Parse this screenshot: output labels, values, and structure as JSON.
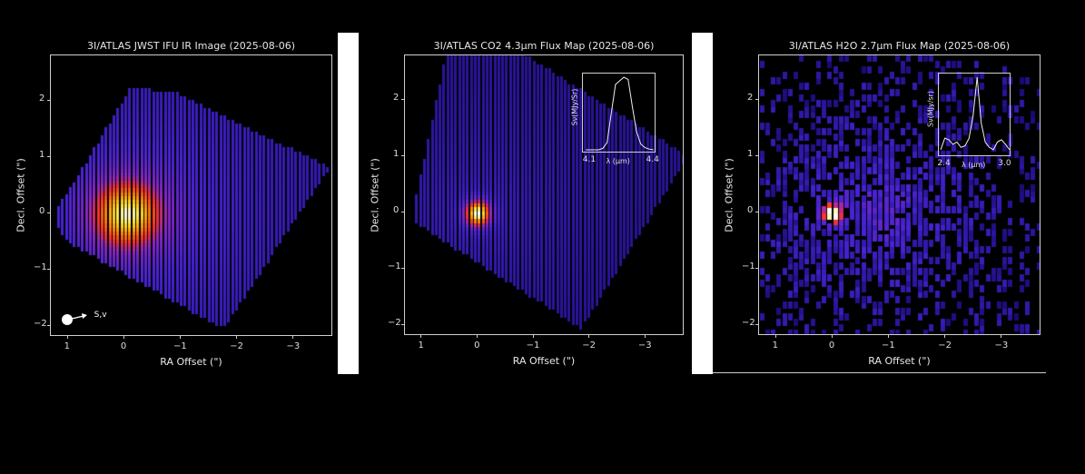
{
  "chart_data": [
    {
      "type": "heatmap",
      "title": "3I/ATLAS JWST IFU IR Image (2025-08-06)",
      "xlabel": "RA Offset (\")",
      "ylabel": "Decl. Offset (\")",
      "xticks": [
        1,
        0,
        -1,
        -2,
        -3
      ],
      "yticks": [
        -2,
        -1,
        0,
        1,
        2
      ],
      "xlim": [
        1.3,
        -3.7
      ],
      "ylim": [
        -2.2,
        2.8
      ],
      "peak": {
        "x": 0,
        "y": 0
      },
      "colormap": "gnuplot2",
      "annotation": {
        "text": "S,v",
        "marker": "white-dot-arrow"
      }
    },
    {
      "type": "heatmap",
      "title": "3I/ATLAS CO2 4.3µm Flux Map (2025-08-06)",
      "xlabel": "RA Offset (\")",
      "ylabel": "Decl. Offset (\")",
      "xticks": [
        1,
        0,
        -1,
        -2,
        -3
      ],
      "yticks": [
        -2,
        -1,
        0,
        1,
        2
      ],
      "xlim": [
        1.3,
        -3.7
      ],
      "ylim": [
        -2.2,
        2.8
      ],
      "peak": {
        "x": 0,
        "y": 0
      },
      "colormap": "gnuplot2",
      "inset": {
        "type": "line",
        "xlabel": "λ (µm)",
        "ylabel": "Sν(MJy/Sr)",
        "xticks": [
          4.1,
          4.4
        ],
        "x": [
          4.08,
          4.1,
          4.12,
          4.14,
          4.16,
          4.18,
          4.2,
          4.22,
          4.24,
          4.26,
          4.28,
          4.3,
          4.32,
          4.34,
          4.36,
          4.38,
          4.4
        ],
        "y": [
          0,
          0,
          0,
          0,
          0.02,
          0.1,
          0.5,
          0.9,
          0.95,
          1.0,
          0.97,
          0.6,
          0.25,
          0.08,
          0.03,
          0.01,
          0
        ]
      }
    },
    {
      "type": "heatmap",
      "title": "3I/ATLAS H2O 2.7µm Flux Map (2025-08-06)",
      "xlabel": "RA Offset (\")",
      "ylabel": "Decl. Offset (\")",
      "xticks": [
        1,
        0,
        -1,
        -2,
        -3
      ],
      "yticks": [
        -2,
        -1,
        0,
        1,
        2
      ],
      "xlim": [
        1.3,
        -3.7
      ],
      "ylim": [
        -2.2,
        2.8
      ],
      "peak": {
        "x": 0,
        "y": 0
      },
      "colormap": "gnuplot2",
      "inset": {
        "type": "line",
        "xlabel": "λ (µm)",
        "ylabel": "Sν(MJy/sr)",
        "xticks": [
          2.4,
          3.0
        ],
        "x": [
          2.36,
          2.4,
          2.44,
          2.48,
          2.52,
          2.56,
          2.6,
          2.64,
          2.68,
          2.72,
          2.76,
          2.8,
          2.84,
          2.88,
          2.92,
          2.96,
          3.0,
          3.04
        ],
        "y": [
          0.05,
          0.2,
          0.18,
          0.12,
          0.15,
          0.08,
          0.1,
          0.2,
          0.5,
          1.0,
          0.4,
          0.15,
          0.08,
          0.05,
          0.15,
          0.18,
          0.12,
          0.05
        ]
      }
    }
  ]
}
